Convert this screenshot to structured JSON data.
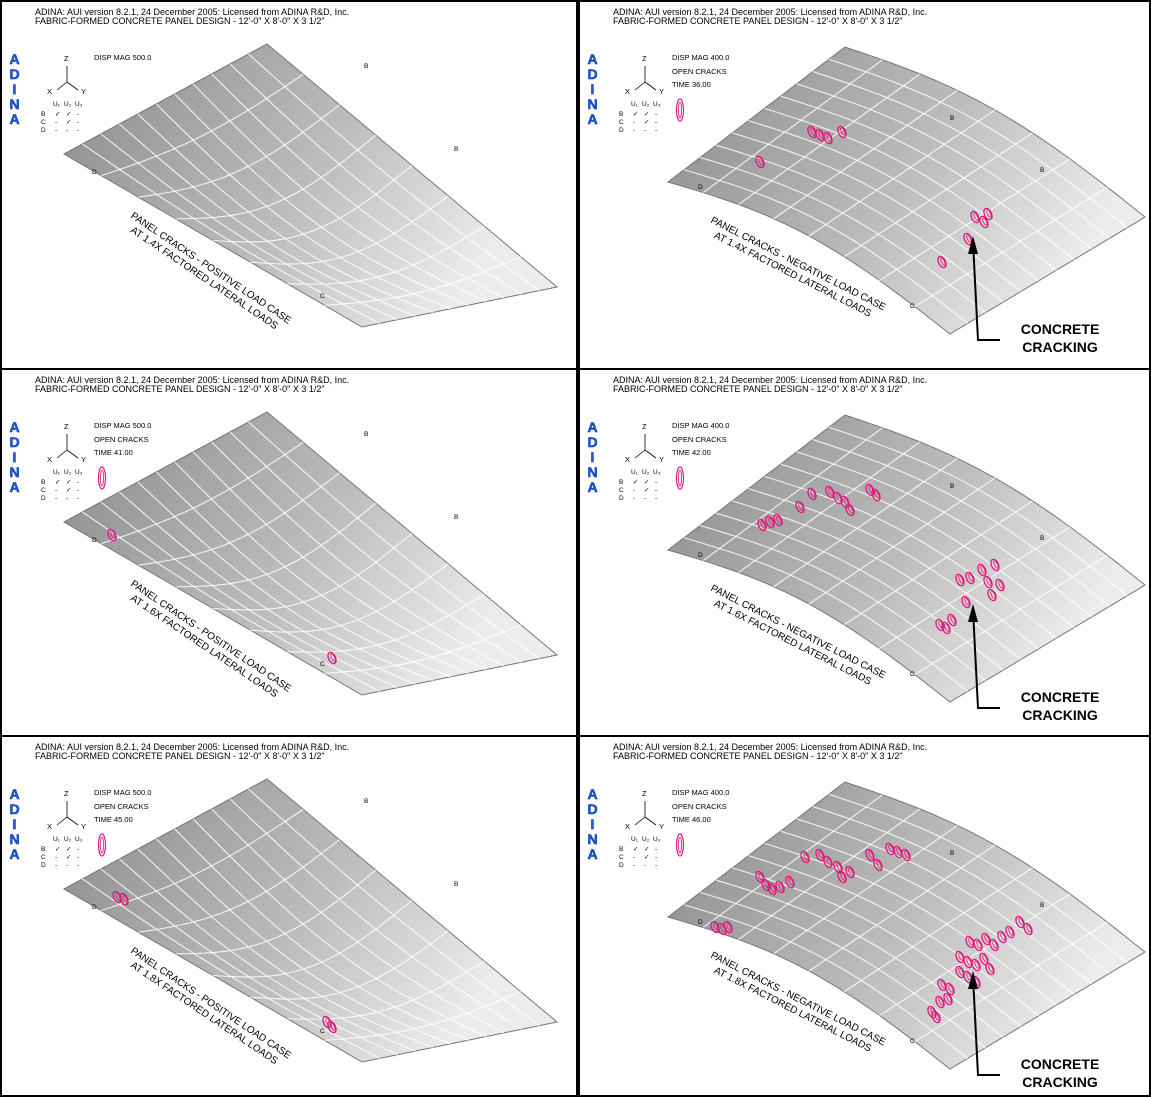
{
  "panels": [
    {
      "header": [
        "ADINA: AUI version 8.2.1, 24 December 2005: Licensed from ADINA R&D, Inc.",
        "FABRIC-FORMED CONCRETE PANEL DESIGN - 12'-0\" X 8'-0\" X 3 1/2\""
      ],
      "logo": "ADINA",
      "axes": [
        "Z",
        "X",
        "Y"
      ],
      "disp_mag": "DISP MAG 500.0",
      "dof": {
        "headers": [
          "U₁",
          "U₂",
          "U₃"
        ],
        "rows": [
          {
            "label": "B",
            "cells": [
              "✓",
              "✓",
              "-"
            ]
          },
          {
            "label": "C",
            "cells": [
              "-",
              "✓",
              "-"
            ]
          },
          {
            "label": "D",
            "cells": [
              "-",
              "-",
              "-"
            ]
          }
        ]
      },
      "nodes": [
        "B",
        "B",
        "D",
        "C"
      ],
      "caption": [
        "PANEL CRACKS - POSITIVE LOAD CASE",
        "AT 1.4X FACTORED LATERAL LOADS"
      ]
    },
    {
      "header": [
        "ADINA: AUI version 8.2.1, 24 December 2005: Licensed from ADINA R&D, Inc.",
        "FABRIC-FORMED CONCRETE PANEL DESIGN - 12'-0\" X 8'-0\" X 3 1/2\""
      ],
      "logo": "ADINA",
      "axes": [
        "Z",
        "X",
        "Y"
      ],
      "disp_mag": "DISP MAG 400.0",
      "status": [
        "OPEN CRACKS",
        "TIME 36.00"
      ],
      "dof": {
        "headers": [
          "U₁",
          "U₂",
          "U₃"
        ],
        "rows": [
          {
            "label": "B",
            "cells": [
              "✓",
              "✓",
              "-"
            ]
          },
          {
            "label": "C",
            "cells": [
              "-",
              "✓",
              "-"
            ]
          },
          {
            "label": "D",
            "cells": [
              "-",
              "-",
              "-"
            ]
          }
        ]
      },
      "nodes": [
        "B",
        "B",
        "D",
        "C"
      ],
      "caption": [
        "PANEL CRACKS - NEGATIVE LOAD CASE",
        "AT 1.4X FACTORED LATERAL LOADS"
      ],
      "annotation": [
        "CONCRETE",
        "CRACKING"
      ]
    },
    {
      "header": [
        "ADINA: AUI version 8.2.1, 24 December 2005: Licensed from ADINA R&D, Inc.",
        "FABRIC-FORMED CONCRETE PANEL DESIGN - 12'-0\" X 8'-0\" X 3 1/2\""
      ],
      "logo": "ADINA",
      "axes": [
        "Z",
        "X",
        "Y"
      ],
      "disp_mag": "DISP MAG 500.0",
      "status": [
        "OPEN CRACKS",
        "TIME 41.00"
      ],
      "dof": {
        "headers": [
          "U₁",
          "U₂",
          "U₃"
        ],
        "rows": [
          {
            "label": "B",
            "cells": [
              "✓",
              "✓",
              "-"
            ]
          },
          {
            "label": "C",
            "cells": [
              "-",
              "✓",
              "-"
            ]
          },
          {
            "label": "D",
            "cells": [
              "-",
              "-",
              "-"
            ]
          }
        ]
      },
      "nodes": [
        "B",
        "B",
        "D",
        "C"
      ],
      "caption": [
        "PANEL CRACKS - POSITIVE LOAD CASE",
        "AT 1.6X FACTORED LATERAL LOADS"
      ]
    },
    {
      "header": [
        "ADINA: AUI version 8.2.1, 24 December 2005: Licensed from ADINA R&D, Inc.",
        "FABRIC-FORMED CONCRETE PANEL DESIGN - 12'-0\" X 8'-0\" X 3 1/2\""
      ],
      "logo": "ADINA",
      "axes": [
        "Z",
        "X",
        "Y"
      ],
      "disp_mag": "DISP MAG 400.0",
      "status": [
        "OPEN CRACKS",
        "TIME 42.00"
      ],
      "dof": {
        "headers": [
          "U₁",
          "U₂",
          "U₃"
        ],
        "rows": [
          {
            "label": "B",
            "cells": [
              "✓",
              "✓",
              "-"
            ]
          },
          {
            "label": "C",
            "cells": [
              "-",
              "✓",
              "-"
            ]
          },
          {
            "label": "D",
            "cells": [
              "-",
              "-",
              "-"
            ]
          }
        ]
      },
      "nodes": [
        "B",
        "B",
        "D",
        "C"
      ],
      "caption": [
        "PANEL CRACKS - NEGATIVE LOAD CASE",
        "AT 1.6X FACTORED LATERAL LOADS"
      ],
      "annotation": [
        "CONCRETE",
        "CRACKING"
      ]
    },
    {
      "header": [
        "ADINA: AUI version 8.2.1, 24 December 2005: Licensed from ADINA R&D, Inc.",
        "FABRIC-FORMED CONCRETE PANEL DESIGN - 12'-0\" X 8'-0\" X 3 1/2\""
      ],
      "logo": "ADINA",
      "axes": [
        "Z",
        "X",
        "Y"
      ],
      "disp_mag": "DISP MAG 500.0",
      "status": [
        "OPEN CRACKS",
        "TIME 45.00"
      ],
      "dof": {
        "headers": [
          "U₁",
          "U₂",
          "U₃"
        ],
        "rows": [
          {
            "label": "B",
            "cells": [
              "✓",
              "✓",
              "-"
            ]
          },
          {
            "label": "C",
            "cells": [
              "-",
              "✓",
              "-"
            ]
          },
          {
            "label": "D",
            "cells": [
              "-",
              "-",
              "-"
            ]
          }
        ]
      },
      "nodes": [
        "B",
        "B",
        "D",
        "C"
      ],
      "caption": [
        "PANEL CRACKS - POSITIVE LOAD CASE",
        "AT 1.8X FACTORED LATERAL LOADS"
      ]
    },
    {
      "header": [
        "ADINA: AUI version 8.2.1, 24 December 2005: Licensed from ADINA R&D, Inc.",
        "FABRIC-FORMED CONCRETE PANEL DESIGN - 12'-0\" X 8'-0\" X 3 1/2\""
      ],
      "logo": "ADINA",
      "axes": [
        "Z",
        "X",
        "Y"
      ],
      "disp_mag": "DISP MAG 400.0",
      "status": [
        "OPEN CRACKS",
        "TIME 46.00"
      ],
      "dof": {
        "headers": [
          "U₁",
          "U₂",
          "U₃"
        ],
        "rows": [
          {
            "label": "B",
            "cells": [
              "✓",
              "✓",
              "-"
            ]
          },
          {
            "label": "C",
            "cells": [
              "-",
              "✓",
              "-"
            ]
          },
          {
            "label": "D",
            "cells": [
              "-",
              "-",
              "-"
            ]
          }
        ]
      },
      "nodes": [
        "B",
        "B",
        "D",
        "C"
      ],
      "caption": [
        "PANEL CRACKS - NEGATIVE LOAD CASE",
        "AT 1.8X FACTORED LATERAL LOADS"
      ],
      "annotation": [
        "CONCRETE",
        "CRACKING"
      ]
    }
  ]
}
